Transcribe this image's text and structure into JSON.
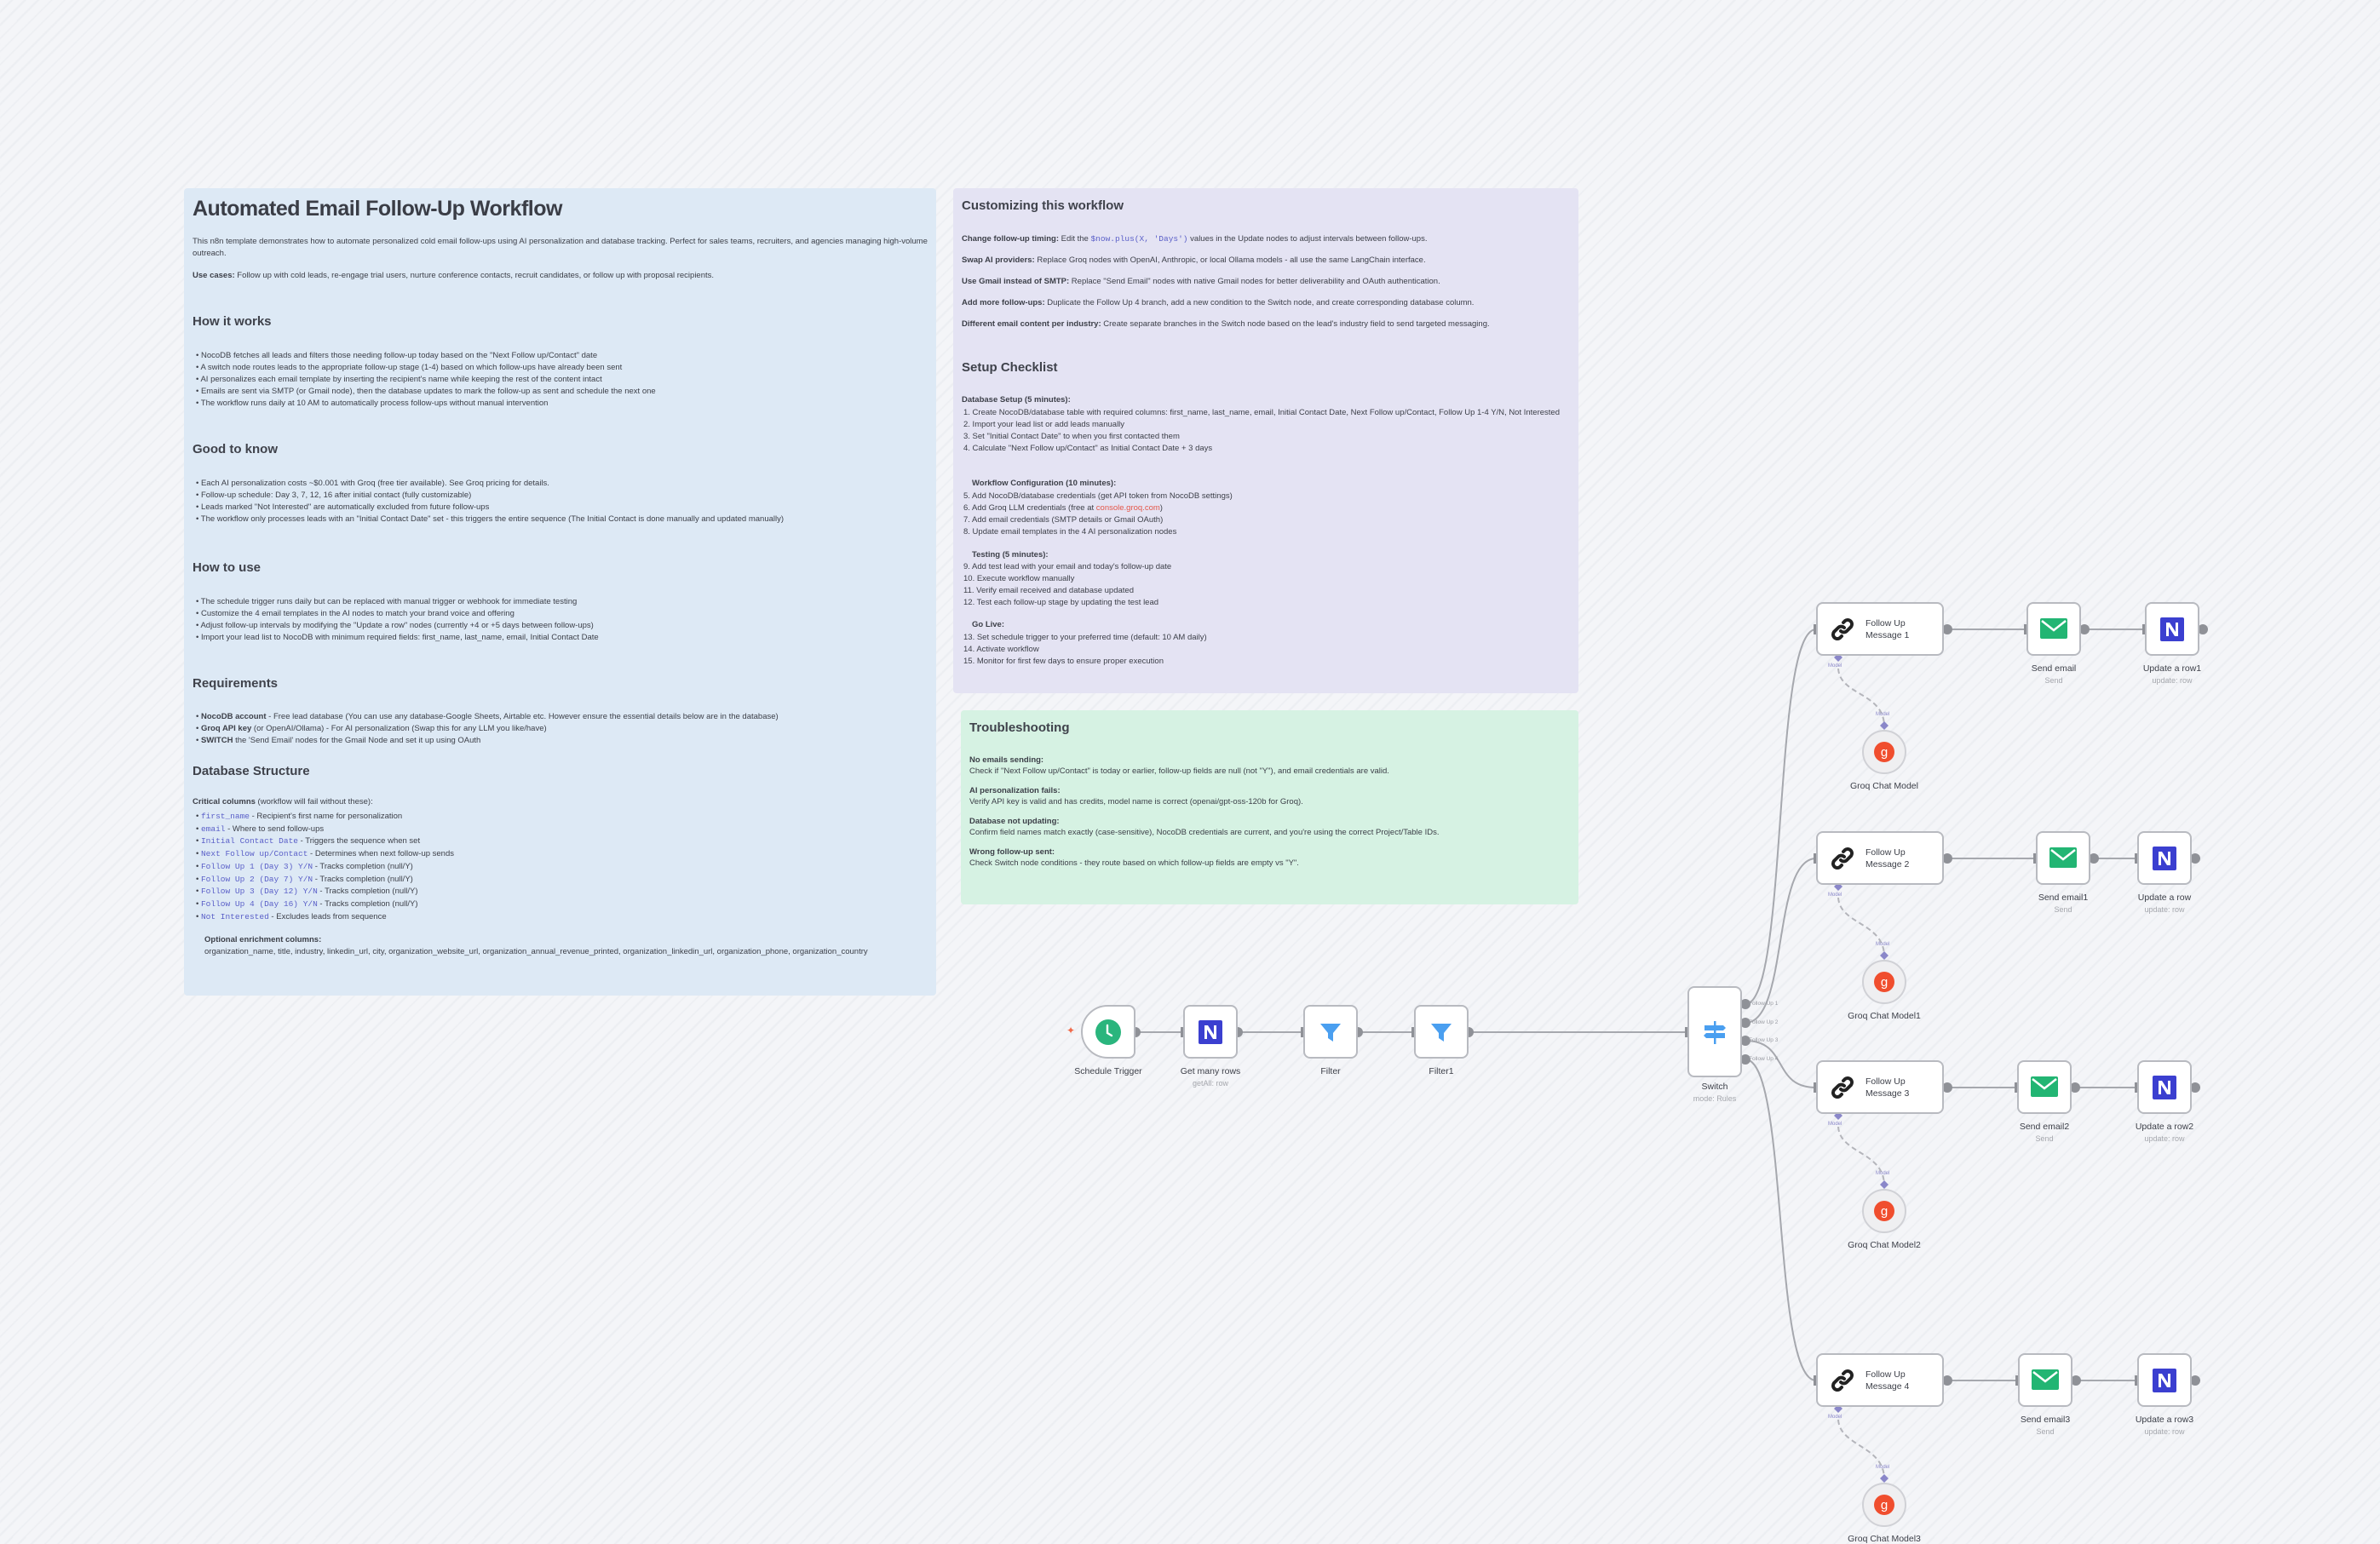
{
  "intro_note": {
    "title": "Automated Email Follow-Up Workflow",
    "intro": "This n8n template demonstrates how to automate personalized cold email follow-ups using AI personalization and database tracking. Perfect for sales teams, recruiters, and agencies managing high-volume outreach.",
    "use_cases_label": "Use cases:",
    "use_cases": "Follow up with cold leads, re-engage trial users, nurture conference contacts, recruit candidates, or follow up with proposal recipients.",
    "how_it_works": {
      "heading": "How it works",
      "items": [
        "NocoDB fetches all leads and filters those needing follow-up today based on the \"Next Follow up/Contact\" date",
        "A switch node routes leads to the appropriate follow-up stage (1-4) based on which follow-ups have already been sent",
        "AI personalizes each email template by inserting the recipient's name while keeping the rest of the content intact",
        "Emails are sent via SMTP (or Gmail node), then the database updates to mark the follow-up as sent and schedule the next one",
        "The workflow runs daily at 10 AM to automatically process follow-ups without manual intervention"
      ]
    },
    "good_to_know": {
      "heading": "Good to know",
      "items": [
        "Each AI personalization costs ~$0.001 with Groq (free tier available). See Groq pricing for details.",
        "Follow-up schedule: Day 3, 7, 12, 16 after initial contact (fully customizable)",
        "Leads marked \"Not Interested\" are automatically excluded from future follow-ups",
        "The workflow only processes leads with an \"Initial Contact Date\" set - this triggers the entire sequence (The Initial Contact is done manually and updated manually)"
      ]
    },
    "how_to_use": {
      "heading": "How to use",
      "items": [
        "The schedule trigger runs daily but can be replaced with manual trigger or webhook for immediate testing",
        "Customize the 4 email templates in the AI nodes to match your brand voice and offering",
        "Adjust follow-up intervals by modifying the \"Update a row\" nodes (currently +4 or +5 days between follow-ups)",
        "Import your lead list to NocoDB with minimum required fields: first_name, last_name, email, Initial Contact Date"
      ]
    },
    "requirements": {
      "heading": "Requirements",
      "items": [
        {
          "bold": "NocoDB account",
          "text": " - Free lead database (You can use any database-Google Sheets, Airtable etc. However ensure the essential details below are in the database)"
        },
        {
          "bold": "Groq API key",
          "text": " (or OpenAI/Ollama) - For AI personalization (Swap this for any LLM you like/have)"
        },
        {
          "bold": "SWITCH",
          "text": " the 'Send Email' nodes for the Gmail Node and set it up using OAuth"
        }
      ]
    },
    "database": {
      "heading": "Database Structure",
      "critical_label": "Critical columns",
      "critical_note": " (workflow will fail without these):",
      "columns": [
        {
          "name": "first_name",
          "desc": " - Recipient's first name for personalization"
        },
        {
          "name": "email",
          "desc": " - Where to send follow-ups"
        },
        {
          "name": "Initial Contact Date",
          "desc": " - Triggers the sequence when set"
        },
        {
          "name": "Next Follow up/Contact",
          "desc": " - Determines when next follow-up sends"
        },
        {
          "name": "Follow Up 1 (Day 3) Y/N",
          "desc": " - Tracks completion (null/Y)"
        },
        {
          "name": "Follow Up 2 (Day 7) Y/N",
          "desc": " - Tracks completion (null/Y)"
        },
        {
          "name": "Follow Up 3 (Day 12) Y/N",
          "desc": " - Tracks completion (null/Y)"
        },
        {
          "name": "Follow Up 4 (Day 16) Y/N",
          "desc": " - Tracks completion (null/Y)"
        },
        {
          "name": "Not Interested",
          "desc": " - Excludes leads from sequence"
        }
      ],
      "optional_label": "Optional enrichment columns:",
      "optional": "organization_name, title, industry, linkedin_url, city, organization_website_url, organization_annual_revenue_printed, organization_linkedin_url, organization_phone, organization_country"
    }
  },
  "customize_note": {
    "title": "Customizing this workflow",
    "items": [
      {
        "bold": "Change follow-up timing:",
        "pre": " Edit the ",
        "code": "$now.plus(X, 'Days')",
        "post": " values in the Update nodes to adjust intervals between follow-ups."
      },
      {
        "bold": "Swap AI providers:",
        "pre": " Replace Groq nodes with OpenAI, Anthropic, or local Ollama models - all use the same LangChain interface."
      },
      {
        "bold": "Use Gmail instead of SMTP:",
        "pre": " Replace \"Send Email\" nodes with native Gmail nodes for better deliverability and OAuth authentication."
      },
      {
        "bold": "Add more follow-ups:",
        "pre": " Duplicate the Follow Up 4 branch, add a new condition to the Switch node, and create corresponding database column."
      },
      {
        "bold": "Different email content per industry:",
        "pre": " Create separate branches in the Switch node based on the lead's industry field to send targeted messaging."
      }
    ],
    "checklist_heading": "Setup Checklist",
    "db_setup_label": "Database Setup (5 minutes):",
    "db_setup": [
      "1. Create NocoDB/database table with required columns: first_name, last_name, email, Initial Contact Date, Next Follow up/Contact, Follow Up 1-4 Y/N, Not Interested",
      "2. Import your lead list or add leads manually",
      "3. Set \"Initial Contact Date\" to when you first contacted them",
      "4. Calculate \"Next Follow up/Contact\" as Initial Contact Date + 3 days"
    ],
    "wf_label": "Workflow Configuration (10 minutes):",
    "wf": [
      "5. Add NocoDB/database credentials (get API token from NocoDB settings)",
      "7. Add email credentials (SMTP details or Gmail OAuth)",
      "8. Update email templates in the 4 AI personalization nodes"
    ],
    "wf6_pre": "6. Add Groq LLM credentials (free at ",
    "wf6_link": "console.groq.com",
    "wf6_post": ")",
    "testing_label": "Testing (5 minutes):",
    "testing": [
      "9. Add test lead with your email and today's follow-up date",
      "10. Execute workflow manually",
      "11. Verify email received and database updated",
      "12. Test each follow-up stage by updating the test lead"
    ],
    "golive_label": "Go Live:",
    "golive": [
      "13. Set schedule trigger to your preferred time (default: 10 AM daily)",
      "14. Activate workflow",
      "15. Monitor for first few days to ensure proper execution"
    ]
  },
  "troubleshooting_note": {
    "title": "Troubleshooting",
    "items": [
      {
        "q": "No emails sending:",
        "a": "Check if \"Next Follow up/Contact\" is today or earlier, follow-up fields are null (not \"Y\"), and email credentials are valid."
      },
      {
        "q": "AI personalization fails:",
        "a": "Verify API key is valid and has credits, model name is correct (openai/gpt-oss-120b for Groq)."
      },
      {
        "q": "Database not updating:",
        "a": "Confirm field names match exactly (case-sensitive), NocoDB credentials are current, and you're using the correct Project/Table IDs."
      },
      {
        "q": "Wrong follow-up sent:",
        "a": "Check Switch node conditions - they route based on which follow-up fields are empty vs \"Y\"."
      }
    ]
  },
  "nodes": {
    "trigger": {
      "label": "Schedule Trigger",
      "icon": "clock-icon"
    },
    "get_rows": {
      "label": "Get many rows",
      "sub": "getAll: row",
      "icon": "nocodb-icon"
    },
    "filter": {
      "label": "Filter",
      "icon": "filter-icon"
    },
    "filter1": {
      "label": "Filter1",
      "icon": "filter-icon"
    },
    "switch": {
      "label": "Switch",
      "sub": "mode: Rules",
      "icon": "signpost-icon",
      "outputs": [
        "Follow Up 1",
        "Follow Up 2",
        "Follow Up 3",
        "Follow Up 4"
      ]
    },
    "model_label": "Model",
    "branches": [
      {
        "ai": [
          "Follow Up",
          "Message 1"
        ],
        "send": "Send email",
        "send_sub": "Send",
        "update": "Update a row1",
        "update_sub": "update: row",
        "groq": "Groq Chat Model"
      },
      {
        "ai": [
          "Follow Up",
          "Message 2"
        ],
        "send": "Send email1",
        "send_sub": "Send",
        "update": "Update a row",
        "update_sub": "update: row",
        "groq": "Groq Chat Model1"
      },
      {
        "ai": [
          "Follow Up",
          "Message 3"
        ],
        "send": "Send email2",
        "send_sub": "Send",
        "update": "Update a row2",
        "update_sub": "update: row",
        "groq": "Groq Chat Model2"
      },
      {
        "ai": [
          "Follow Up",
          "Message 4"
        ],
        "send": "Send email3",
        "send_sub": "Send",
        "update": "Update a row3",
        "update_sub": "update: row",
        "groq": "Groq Chat Model3"
      }
    ]
  },
  "colors": {
    "intro_note": "#dde9f5",
    "customize_note": "#e4e3f3",
    "troubleshooting_note": "#d6f2e3",
    "nocodb": "#3b3fd0",
    "email": "#22b573",
    "filter": "#4a9ff0",
    "groq": "#f04e2e",
    "clock": "#2ab57d"
  }
}
